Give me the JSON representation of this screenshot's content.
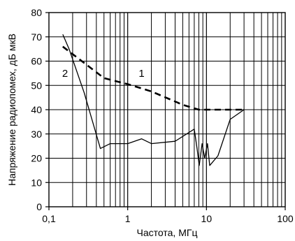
{
  "chart_data": {
    "type": "line",
    "title": "",
    "xlabel": "Частота, МГц",
    "ylabel": "Напряжение радиопомех, дБ мкВ",
    "x_scale": "log",
    "xlim": [
      0.1,
      100
    ],
    "ylim": [
      0,
      80
    ],
    "x_ticks": [
      0.1,
      1,
      10,
      100
    ],
    "x_tick_labels": [
      "0,1",
      "1",
      "10",
      "100"
    ],
    "y_ticks": [
      0,
      10,
      20,
      30,
      40,
      50,
      60,
      70,
      80
    ],
    "y_tick_labels": [
      "0",
      "10",
      "20",
      "30",
      "40",
      "50",
      "60",
      "70",
      "80"
    ],
    "grid": true,
    "series": [
      {
        "name": "1",
        "style": "dashed",
        "points": [
          [
            0.15,
            66
          ],
          [
            0.5,
            53
          ],
          [
            1,
            50.5
          ],
          [
            2,
            47.5
          ],
          [
            5,
            42
          ],
          [
            8,
            40
          ],
          [
            10,
            40
          ],
          [
            15,
            40
          ],
          [
            30,
            40
          ]
        ],
        "label_at": [
          1.5,
          55
        ]
      },
      {
        "name": "2",
        "style": "solid",
        "points": [
          [
            0.15,
            71
          ],
          [
            0.18,
            65
          ],
          [
            0.28,
            47
          ],
          [
            0.45,
            24
          ],
          [
            0.6,
            26
          ],
          [
            1,
            26
          ],
          [
            1.5,
            28
          ],
          [
            2,
            26
          ],
          [
            4,
            27
          ],
          [
            7,
            32
          ],
          [
            7.6,
            24
          ],
          [
            8.1,
            17
          ],
          [
            8.8,
            26
          ],
          [
            9.5,
            20
          ],
          [
            10.3,
            26
          ],
          [
            11,
            17
          ],
          [
            14,
            21
          ],
          [
            20,
            36
          ],
          [
            30,
            40
          ]
        ],
        "label_at": [
          0.16,
          55
        ]
      }
    ]
  }
}
